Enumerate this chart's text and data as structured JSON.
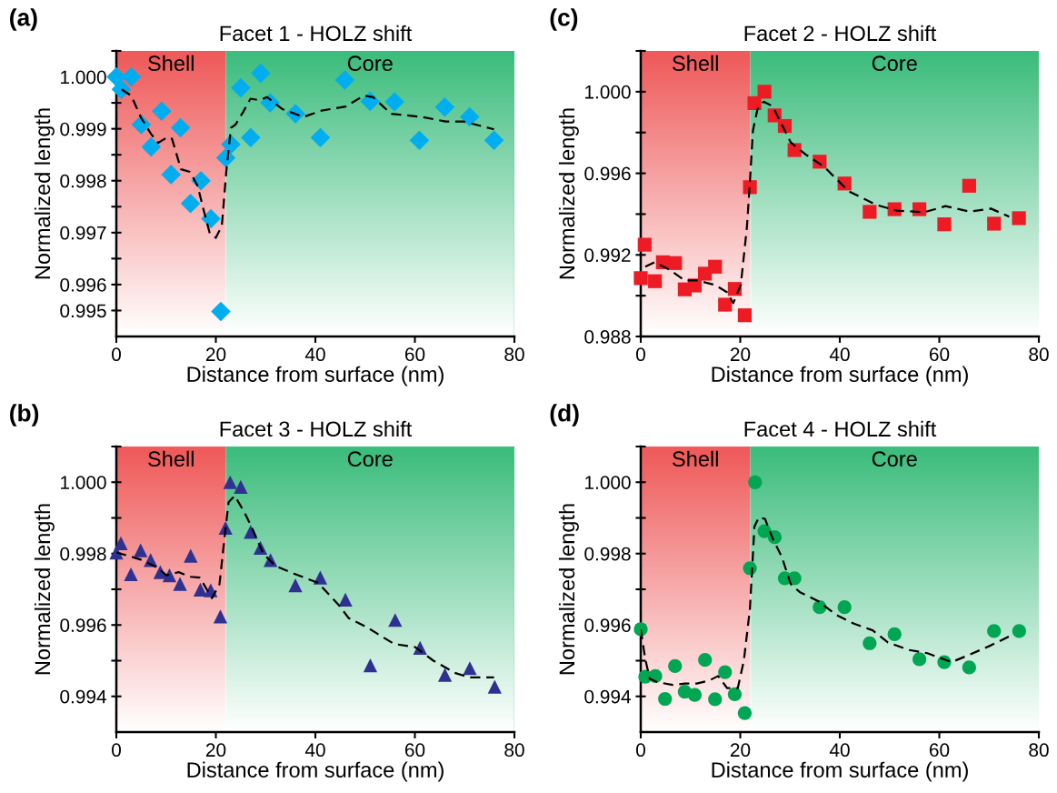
{
  "chart_data": [
    {
      "type": "scatter",
      "title": "Facet 1 - HOLZ shift",
      "xlabel": "Distance from surface (nm)",
      "ylabel": "Normalized length",
      "annotations": [
        "(a)"
      ],
      "xlim": [
        0,
        80
      ],
      "xticks": [
        0,
        20,
        40,
        60,
        80
      ],
      "ylim": [
        0.995,
        1.0005
      ],
      "yticks": [
        {
          "value": 0.9955,
          "label": "0.995"
        },
        0.996,
        {
          "value": 0.9965,
          "label": null
        },
        0.997,
        {
          "value": 0.9975,
          "label": null
        },
        0.998,
        {
          "value": 0.9985,
          "label": null
        },
        0.999,
        {
          "value": 0.9995,
          "label": null
        },
        {
          "value": 1.0,
          "label": "1.000"
        },
        {
          "value": 1.0005,
          "label": null
        }
      ],
      "bands": [
        {
          "axis": "x",
          "from": 0,
          "to": 22,
          "label": "Shell",
          "color": "#ef5a5a"
        },
        {
          "axis": "x",
          "from": 22,
          "to": 80,
          "label": "Core",
          "color": "#3dbd7d"
        }
      ],
      "grid": false,
      "legend": false,
      "series": [
        {
          "type": "scatter",
          "marker": "diamond",
          "color": "#00aeef",
          "x": [
            0,
            1.0,
            3.0,
            5.0,
            7.0,
            9.1,
            11.0,
            12.9,
            14.9,
            17.0,
            19.0,
            21.0,
            22.0,
            23.0,
            25.0,
            27.0,
            29.0,
            30.9,
            36.0,
            41.0,
            45.9,
            51.0,
            55.9,
            60.9,
            66.0,
            71.0,
            75.9
          ],
          "values": [
            1.0,
            0.99976,
            1.0,
            0.99908,
            0.99865,
            0.99934,
            0.99812,
            0.99902,
            0.99756,
            0.998,
            0.99727,
            0.99548,
            0.99844,
            0.9987,
            0.99979,
            0.99883,
            1.00007,
            0.9995,
            0.99929,
            0.99883,
            0.99994,
            0.99953,
            0.99952,
            0.99878,
            0.99942,
            0.99923,
            0.99878
          ]
        },
        {
          "type": "line",
          "line_style": "dashed",
          "color": "#000000",
          "x": [
            1.03,
            2.98,
            5.04,
            6.99,
            8.44,
            10.27,
            11.18,
            13.0,
            14.82,
            16.34,
            17.56,
            18.77,
            19.99,
            21.2,
            22.11,
            23.03,
            23.94,
            25.46,
            26.97,
            28.8,
            30.3,
            33.35,
            37.6,
            41.25,
            46.1,
            49.76,
            51.6,
            55.2,
            61.3,
            66.2,
            69.8,
            75.9
          ],
          "values": [
            0.99976,
            0.99964,
            0.9992,
            0.9989,
            0.99873,
            0.99884,
            0.99881,
            0.99822,
            0.99817,
            0.9979,
            0.99743,
            0.99699,
            0.9969,
            0.99713,
            0.99819,
            0.99902,
            0.99908,
            0.99932,
            0.99958,
            0.99955,
            0.99961,
            0.99938,
            0.99923,
            0.99935,
            0.99943,
            0.99964,
            0.99961,
            0.99929,
            0.99923,
            0.99914,
            0.99914,
            0.99899
          ]
        }
      ]
    },
    {
      "type": "scatter",
      "title": "Facet 2 - HOLZ shift",
      "xlabel": "Distance from surface (nm)",
      "ylabel": "Normalized length",
      "annotations": [
        "(c)"
      ],
      "xlim": [
        0,
        80
      ],
      "xticks": [
        0,
        20,
        40,
        60,
        80
      ],
      "ylim": [
        0.988,
        1.002
      ],
      "yticks": [
        0.988,
        {
          "value": 0.99,
          "label": null
        },
        0.992,
        {
          "value": 0.994,
          "label": null
        },
        0.996,
        {
          "value": 0.998,
          "label": null
        },
        {
          "value": 1.0,
          "label": "1.000"
        },
        {
          "value": 1.002,
          "label": null
        }
      ],
      "bands": [
        {
          "axis": "x",
          "from": 0,
          "to": 22,
          "label": "Shell",
          "color": "#ef5a5a"
        },
        {
          "axis": "x",
          "from": 22,
          "to": 80,
          "label": "Core",
          "color": "#3dbd7d"
        }
      ],
      "grid": false,
      "legend": false,
      "series": [
        {
          "type": "scatter",
          "marker": "square",
          "color": "#ed1c24",
          "x": [
            0,
            0.79,
            2.86,
            4.45,
            6.9,
            8.84,
            10.85,
            12.9,
            14.93,
            16.94,
            18.89,
            20.9,
            21.94,
            22.85,
            24.86,
            26.9,
            28.95,
            30.9,
            35.95,
            40.95,
            46.0,
            51.0,
            56.0,
            61.0,
            66.0,
            71.0,
            76.0
          ],
          "values": [
            0.99086,
            0.9925,
            0.99071,
            0.99164,
            0.9916,
            0.99031,
            0.9905,
            0.99108,
            0.99142,
            0.98956,
            0.99033,
            0.98904,
            0.99532,
            0.99944,
            1.0,
            0.99884,
            0.99832,
            0.99714,
            0.99657,
            0.9955,
            0.99411,
            0.99424,
            0.99424,
            0.9935,
            0.99539,
            0.99353,
            0.9938
          ]
        },
        {
          "type": "line",
          "line_style": "dashed",
          "color": "#000000",
          "x": [
            0.91,
            2.74,
            5.79,
            8.84,
            11.27,
            14.93,
            17.37,
            18.59,
            20.11,
            21.33,
            21.94,
            22.55,
            23.46,
            24.68,
            26.51,
            27.73,
            30.16,
            33.21,
            36.87,
            41.74,
            47.23,
            51.49,
            56.98,
            61.24,
            66.12,
            70.38,
            74.04
          ],
          "values": [
            0.99142,
            0.99164,
            0.99127,
            0.99075,
            0.99075,
            0.99053,
            0.99016,
            0.98964,
            0.99053,
            0.99335,
            0.99558,
            0.9981,
            0.99914,
            0.99951,
            0.99929,
            0.99869,
            0.99751,
            0.99691,
            0.99632,
            0.99513,
            0.99446,
            0.99417,
            0.99409,
            0.99439,
            0.99412,
            0.99427,
            0.99387
          ]
        }
      ]
    },
    {
      "type": "scatter",
      "title": "Facet 3 - HOLZ shift",
      "xlabel": "Distance from surface (nm)",
      "ylabel": "Normalized length",
      "annotations": [
        "(b)"
      ],
      "xlim": [
        0,
        80
      ],
      "xticks": [
        0,
        20,
        40,
        60,
        80
      ],
      "ylim": [
        0.993,
        1.001
      ],
      "yticks": [
        0.994,
        {
          "value": 0.995,
          "label": null
        },
        0.996,
        {
          "value": 0.997,
          "label": null
        },
        0.998,
        {
          "value": 0.999,
          "label": null
        },
        {
          "value": 1.0,
          "label": "1.000"
        },
        {
          "value": 1.001,
          "label": null
        }
      ],
      "bands": [
        {
          "axis": "x",
          "from": 0,
          "to": 22,
          "label": "Shell",
          "color": "#ef5a5a"
        },
        {
          "axis": "x",
          "from": 22,
          "to": 80,
          "label": "Core",
          "color": "#3dbd7d"
        }
      ],
      "grid": false,
      "legend": false,
      "series": [
        {
          "type": "scatter",
          "marker": "triangle",
          "color": "#2e3192",
          "x": [
            0,
            0.91,
            2.93,
            4.88,
            6.89,
            8.84,
            10.67,
            12.8,
            14.94,
            16.89,
            18.96,
            20.91,
            21.95,
            22.87,
            25.0,
            27.0,
            28.96,
            30.98,
            35.98,
            40.98,
            46.04,
            51.04,
            56.04,
            61.04,
            66.04,
            71.04,
            76.04
          ],
          "values": [
            0.99803,
            0.99829,
            0.99742,
            0.99809,
            0.99782,
            0.99748,
            0.99739,
            0.99715,
            0.99794,
            0.99699,
            0.99697,
            0.99624,
            0.99872,
            1.0,
            0.99987,
            0.99861,
            0.99816,
            0.99782,
            0.99711,
            0.99733,
            0.99671,
            0.99487,
            0.99614,
            0.99536,
            0.9946,
            0.99479,
            0.99427
          ]
        },
        {
          "type": "line",
          "line_style": "dashed",
          "color": "#000000",
          "x": [
            0,
            2.13,
            5.18,
            8.23,
            10.06,
            12.5,
            14.94,
            16.77,
            19.21,
            20.73,
            21.65,
            22.56,
            23.78,
            25.61,
            27.13,
            29.57,
            32.01,
            35.67,
            40.55,
            44.82,
            46.65,
            50.3,
            55.79,
            60.06,
            63.72,
            67.99,
            71.04,
            75.91
          ],
          "values": [
            0.99803,
            0.99795,
            0.99782,
            0.99761,
            0.99739,
            0.99748,
            0.99735,
            0.99733,
            0.99675,
            0.99714,
            0.99833,
            0.99944,
            0.99962,
            0.99919,
            0.99876,
            0.99799,
            0.99765,
            0.99744,
            0.99718,
            0.99654,
            0.9962,
            0.99594,
            0.99547,
            0.99538,
            0.995,
            0.99466,
            0.99453,
            0.99453
          ]
        }
      ]
    },
    {
      "type": "scatter",
      "title": "Facet 4 - HOLZ shift",
      "xlabel": "Distance from surface (nm)",
      "ylabel": "Normalized length",
      "annotations": [
        "(d)"
      ],
      "xlim": [
        0,
        80
      ],
      "xticks": [
        0,
        20,
        40,
        60,
        80
      ],
      "ylim": [
        0.993,
        1.001
      ],
      "yticks": [
        0.994,
        {
          "value": 0.995,
          "label": null
        },
        0.996,
        {
          "value": 0.997,
          "label": null
        },
        0.998,
        {
          "value": 0.999,
          "label": null
        },
        {
          "value": 1.0,
          "label": "1.000"
        },
        {
          "value": 1.001,
          "label": null
        }
      ],
      "bands": [
        {
          "axis": "x",
          "from": 0,
          "to": 22,
          "label": "Shell",
          "color": "#ef5a5a"
        },
        {
          "axis": "x",
          "from": 22,
          "to": 80,
          "label": "Core",
          "color": "#3dbd7d"
        }
      ],
      "grid": false,
      "legend": false,
      "series": [
        {
          "type": "scatter",
          "marker": "circle",
          "color": "#00a651",
          "x": [
            0,
            0.91,
            2.93,
            4.88,
            6.89,
            8.84,
            10.85,
            12.92,
            14.93,
            16.94,
            18.89,
            20.9,
            21.94,
            22.97,
            24.86,
            26.93,
            28.95,
            30.9,
            35.95,
            40.95,
            46.0,
            51.0,
            56.0,
            61.0,
            66.0,
            71.0,
            76.05
          ],
          "values": [
            0.99588,
            0.99455,
            0.99457,
            0.99393,
            0.99485,
            0.99413,
            0.99404,
            0.99502,
            0.99392,
            0.99468,
            0.99406,
            0.99353,
            0.99759,
            1.0,
            0.99863,
            0.99846,
            0.99731,
            0.99731,
            0.9965,
            0.9965,
            0.99549,
            0.99574,
            0.99504,
            0.99496,
            0.99481,
            0.99583,
            0.99583
          ]
        },
        {
          "type": "line",
          "line_style": "dashed",
          "color": "#000000",
          "x": [
            0,
            0.91,
            1.83,
            3.35,
            6.4,
            8.84,
            11.27,
            13.71,
            15.54,
            17.37,
            19.5,
            20.72,
            21.94,
            22.85,
            23.77,
            24.98,
            26.51,
            28.34,
            30.16,
            31.99,
            35.65,
            39.31,
            42.96,
            46.62,
            49.66,
            53.93,
            57.59,
            62.46,
            66.12,
            70.38,
            74.04
          ],
          "values": [
            0.99588,
            0.99504,
            0.99449,
            0.9944,
            0.99432,
            0.99436,
            0.99436,
            0.99444,
            0.99457,
            0.99423,
            0.99423,
            0.995,
            0.99645,
            0.99876,
            0.99902,
            0.99897,
            0.99842,
            0.99791,
            0.99714,
            0.99692,
            0.99667,
            0.99628,
            0.99603,
            0.99585,
            0.99551,
            0.9953,
            0.99521,
            0.99496,
            0.99517,
            0.99543,
            0.99568
          ]
        }
      ]
    }
  ]
}
